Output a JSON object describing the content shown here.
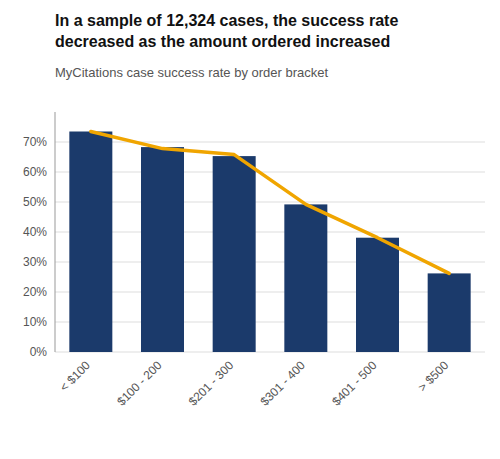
{
  "chart_data": {
    "type": "bar",
    "title": "In a sample of 12,324 cases, the success rate\ndecreased as the amount ordered increased",
    "subtitle": "MyCitations case success rate by order bracket",
    "categories": [
      "< $100",
      "$100 - 200",
      "$201 - 300",
      "$301 - 400",
      "$401 - 500",
      "> $500"
    ],
    "series": [
      {
        "type": "bar",
        "color": "#1b3a6b",
        "values": [
          0.735,
          0.683,
          0.653,
          0.492,
          0.381,
          0.262
        ]
      },
      {
        "type": "line",
        "color": "#f0a500",
        "values": [
          0.735,
          0.678,
          0.658,
          0.492,
          0.381,
          0.262
        ]
      }
    ],
    "ylim": [
      0,
      0.8
    ],
    "yticks": [
      {
        "value": 0.0,
        "label": "0%"
      },
      {
        "value": 0.1,
        "label": "10%"
      },
      {
        "value": 0.2,
        "label": "20%"
      },
      {
        "value": 0.3,
        "label": "30%"
      },
      {
        "value": 0.4,
        "label": "40%"
      },
      {
        "value": 0.5,
        "label": "50%"
      },
      {
        "value": 0.6,
        "label": "60%"
      },
      {
        "value": 0.7,
        "label": "70%"
      }
    ],
    "grid": true
  }
}
